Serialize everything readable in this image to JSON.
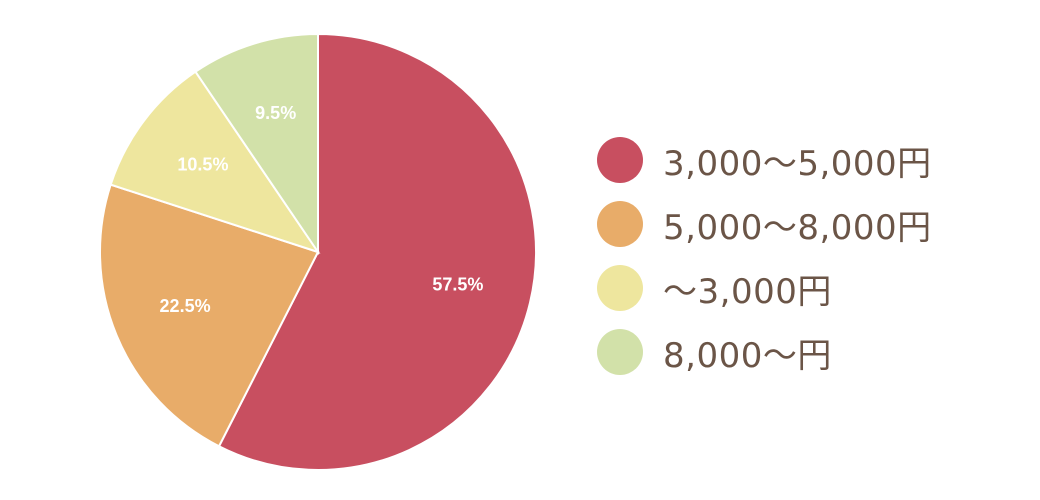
{
  "chart_data": {
    "type": "pie",
    "categories": [
      "3,000～5,000円",
      "5,000～8,000円",
      "～3,000円",
      "8,000～円"
    ],
    "values": [
      57.5,
      22.5,
      10.5,
      9.5
    ],
    "value_labels": [
      "57.5%",
      "22.5%",
      "10.5%",
      "9.5%"
    ],
    "colors": [
      "#c84f60",
      "#e8ac69",
      "#eee69e",
      "#d2e1a9"
    ],
    "start": "12 o'clock",
    "direction": "clockwise",
    "legend": "right"
  }
}
